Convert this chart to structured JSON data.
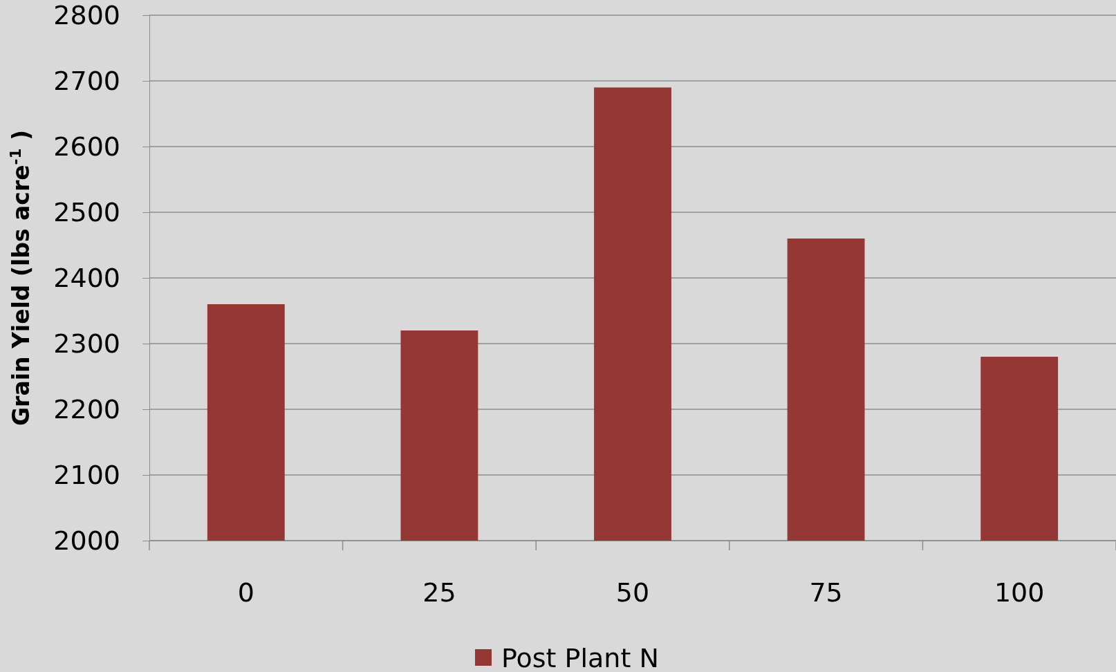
{
  "chart_data": {
    "type": "bar",
    "ylabel": "Grain Yield (lbs acre$^{-1}$ )",
    "categories": [
      "0",
      "25",
      "50",
      "75",
      "100"
    ],
    "series": [
      {
        "name": "Post Plant N",
        "color": "#953735",
        "values": [
          2360,
          2320,
          2690,
          2460,
          2280
        ]
      }
    ],
    "ylim": [
      2000,
      2800
    ],
    "yticks": [
      2000,
      2100,
      2200,
      2300,
      2400,
      2500,
      2600,
      2700,
      2800
    ],
    "grid": "y",
    "legend": "bottom"
  }
}
